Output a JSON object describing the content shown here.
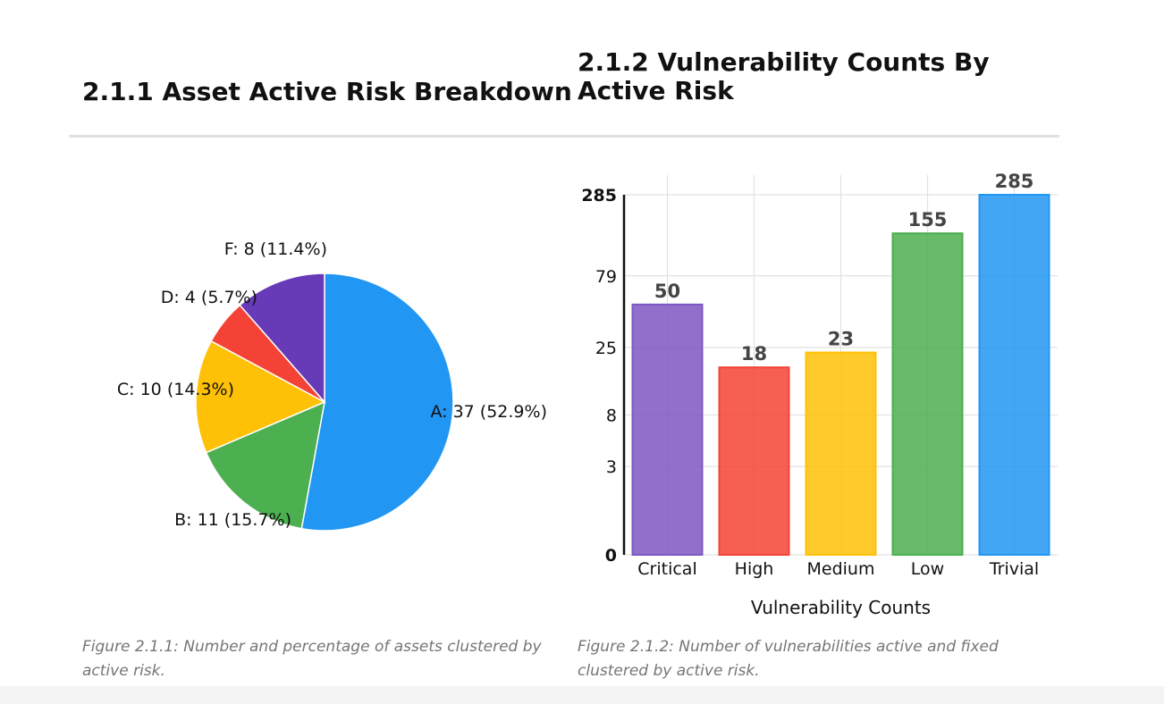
{
  "headings": {
    "pie": "2.1.1 Asset Active Risk Breakdown",
    "bar": "2.1.2 Vulnerability Counts By Active Risk"
  },
  "captions": {
    "pie": "Figure 2.1.1: Number and percentage of assets clustered by active risk.",
    "bar": "Figure 2.1.2: Number of vulnerabilities active and fixed clustered by active risk."
  },
  "chart_data": [
    {
      "type": "pie",
      "title": "",
      "slices": [
        {
          "label": "A: 37 (52.9%)",
          "value": 37,
          "color": "#2196F3"
        },
        {
          "label": "B: 11 (15.7%)",
          "value": 11,
          "color": "#4CAF50"
        },
        {
          "label": "C: 10 (14.3%)",
          "value": 10,
          "color": "#FFC107"
        },
        {
          "label": "D: 4 (5.7%)",
          "value": 4,
          "color": "#F44336"
        },
        {
          "label": "F: 8 (11.4%)",
          "value": 8,
          "color": "#673AB7"
        }
      ]
    },
    {
      "type": "bar",
      "title": "",
      "categories": [
        "Critical",
        "High",
        "Medium",
        "Low",
        "Trivial"
      ],
      "values": [
        50,
        18,
        23,
        155,
        285
      ],
      "colors": [
        "#7E57C2",
        "#F44336",
        "#FFC107",
        "#4CAF50",
        "#2196F3"
      ],
      "xlabel": "Vulnerability Counts",
      "ylabel": "",
      "yscale": "log1p",
      "yticks": [
        0,
        3,
        8,
        25,
        79,
        285
      ],
      "ylim": [
        0,
        285
      ],
      "grid": true,
      "legend": "none"
    }
  ]
}
